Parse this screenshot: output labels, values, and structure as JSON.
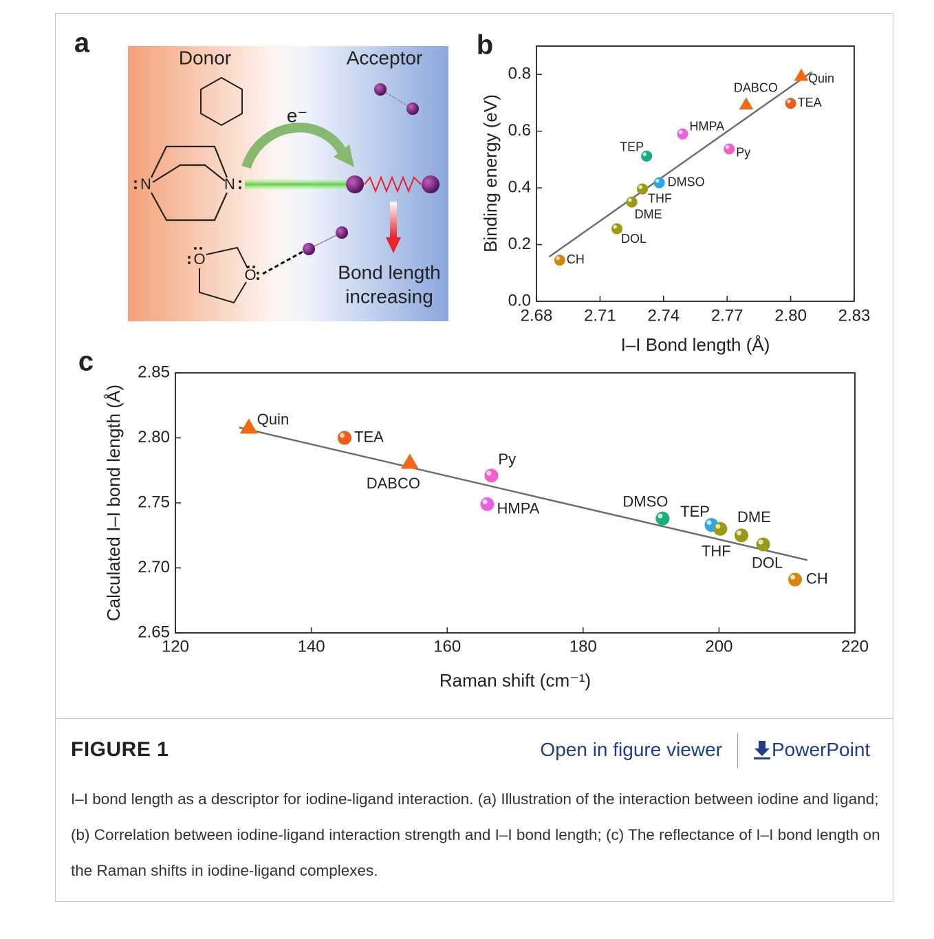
{
  "figure": {
    "panel_a": {
      "letter": "a",
      "donor": "Donor",
      "acceptor": "Acceptor",
      "electron": "e⁻",
      "note": [
        "Bond length",
        "increasing"
      ],
      "atoms": [
        "N",
        "N",
        "O",
        "O"
      ]
    }
  },
  "chart_data": [
    {
      "type": "scatter",
      "letter": "b",
      "xlabel": "I–I Bond length (Å)",
      "ylabel": "Binding energy (eV)",
      "xlim": [
        2.68,
        2.83
      ],
      "ylim": [
        0,
        0.9
      ],
      "xticks": [
        2.68,
        2.71,
        2.74,
        2.77,
        {
          "value": 2.8,
          "label": "2.80"
        },
        2.83
      ],
      "yticks": [
        {
          "value": 0,
          "label": "0.0"
        },
        0.2,
        0.4,
        0.6,
        0.8
      ],
      "labels": [
        "CH",
        "DOL",
        "DME",
        "THF",
        "DMSO",
        "TEP",
        "HMPA",
        "Py",
        "DABCO",
        "TEA",
        "Quin"
      ],
      "x": [
        2.691,
        2.718,
        2.725,
        2.73,
        2.738,
        2.732,
        2.749,
        2.771,
        2.779,
        2.8,
        2.805
      ],
      "y": [
        0.145,
        0.256,
        0.35,
        0.396,
        0.418,
        0.512,
        0.59,
        0.537,
        0.694,
        0.698,
        0.795
      ],
      "colors": [
        "#d4880e",
        "#9a9a14",
        "#9a9a14",
        "#9a9a14",
        "#2aa6ea",
        "#18b07a",
        "#e565e0",
        "#f060c8",
        "#f26a10",
        "#f05a14",
        "#f26a10"
      ],
      "markers": [
        "circle",
        "circle",
        "circle",
        "circle",
        "circle",
        "circle",
        "circle",
        "circle",
        "triangle",
        "circle",
        "triangle"
      ],
      "fit": {
        "x": [
          2.686,
          2.81
        ],
        "y": [
          0.157,
          0.809
        ],
        "color": "#6e6e6e"
      }
    },
    {
      "type": "scatter",
      "letter": "c",
      "xlabel": "Raman shift (cm⁻¹)",
      "ylabel": "Calculated I–I bond length (Å)",
      "xlim": [
        120,
        220
      ],
      "ylim": [
        2.65,
        2.85
      ],
      "xticks": [
        120,
        140,
        160,
        180,
        200,
        220
      ],
      "yticks": [
        2.65,
        {
          "value": 2.7,
          "label": "2.70"
        },
        2.75,
        {
          "value": 2.8,
          "label": "2.80"
        },
        2.85
      ],
      "labels": [
        "Quin",
        "TEA",
        "DABCO",
        "Py",
        "HMPA",
        "DMSO",
        "TEP",
        "THF",
        "DME",
        "DOL",
        "CH"
      ],
      "x": [
        130.8,
        144.9,
        154.5,
        166.5,
        165.9,
        191.7,
        198.9,
        200.2,
        203.3,
        206.5,
        211.2
      ],
      "y": [
        2.808,
        2.8,
        2.781,
        2.771,
        2.749,
        2.738,
        2.733,
        2.73,
        2.725,
        2.718,
        2.691
      ],
      "colors": [
        "#f26a10",
        "#f05a14",
        "#f26a10",
        "#f060c8",
        "#e565e0",
        "#18b07a",
        "#2aa6ea",
        "#9a9a14",
        "#9a9a14",
        "#9a9a14",
        "#d4880e"
      ],
      "markers": [
        "triangle",
        "circle",
        "triangle",
        "circle",
        "circle",
        "circle",
        "circle",
        "circle",
        "circle",
        "circle",
        "circle"
      ],
      "fit": {
        "x": [
          129.4,
          213.0
        ],
        "y": [
          2.808,
          2.706
        ],
        "color": "#6e6e6e"
      }
    }
  ],
  "footer": {
    "title": "FIGURE 1",
    "viewer": "Open in figure viewer",
    "powerpoint": "PowerPoint",
    "caption": "I–I bond length as a descriptor for iodine-ligand interaction. (a) Illustration of the interaction between iodine and ligand; (b) Correlation between iodine-ligand interaction strength and I–I bond length; (c) The reflectance of I–I bond length on the Raman shifts in iodine-ligand complexes."
  }
}
